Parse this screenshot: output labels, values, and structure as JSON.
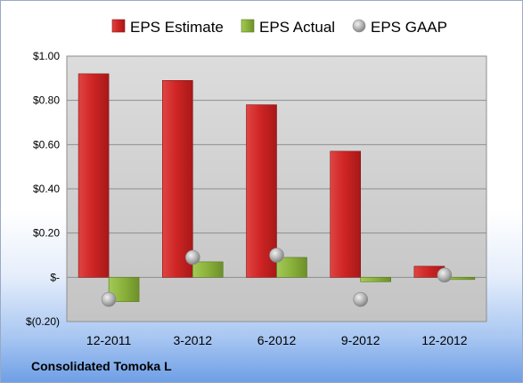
{
  "chart_data": {
    "type": "bar",
    "categories": [
      "12-2011",
      "3-2012",
      "6-2012",
      "9-2012",
      "12-2012"
    ],
    "series": [
      {
        "name": "EPS Estimate",
        "kind": "bar",
        "color": "#d42a2a",
        "values": [
          0.92,
          0.89,
          0.78,
          0.57,
          0.05
        ]
      },
      {
        "name": "EPS Actual",
        "kind": "bar",
        "color": "#8cb43c",
        "values": [
          -0.11,
          0.07,
          0.09,
          -0.02,
          -0.01
        ]
      },
      {
        "name": "EPS GAAP",
        "kind": "marker",
        "color": "#a6a6a6",
        "values": [
          -0.1,
          0.09,
          0.1,
          -0.1,
          0.01
        ]
      }
    ],
    "ylim": [
      -0.2,
      1.0
    ],
    "y_ticks": [
      -0.2,
      0,
      0.2,
      0.4,
      0.6,
      0.8,
      1.0
    ],
    "y_tick_labels": [
      "$(0.20)",
      "$-",
      "$0.20",
      "$0.40",
      "$0.60",
      "$0.80",
      "$1.00"
    ],
    "grid": true,
    "legend_position": "top",
    "title": "",
    "xlabel": "",
    "ylabel": ""
  },
  "footer": {
    "company": "Consolidated Tomoka L"
  }
}
